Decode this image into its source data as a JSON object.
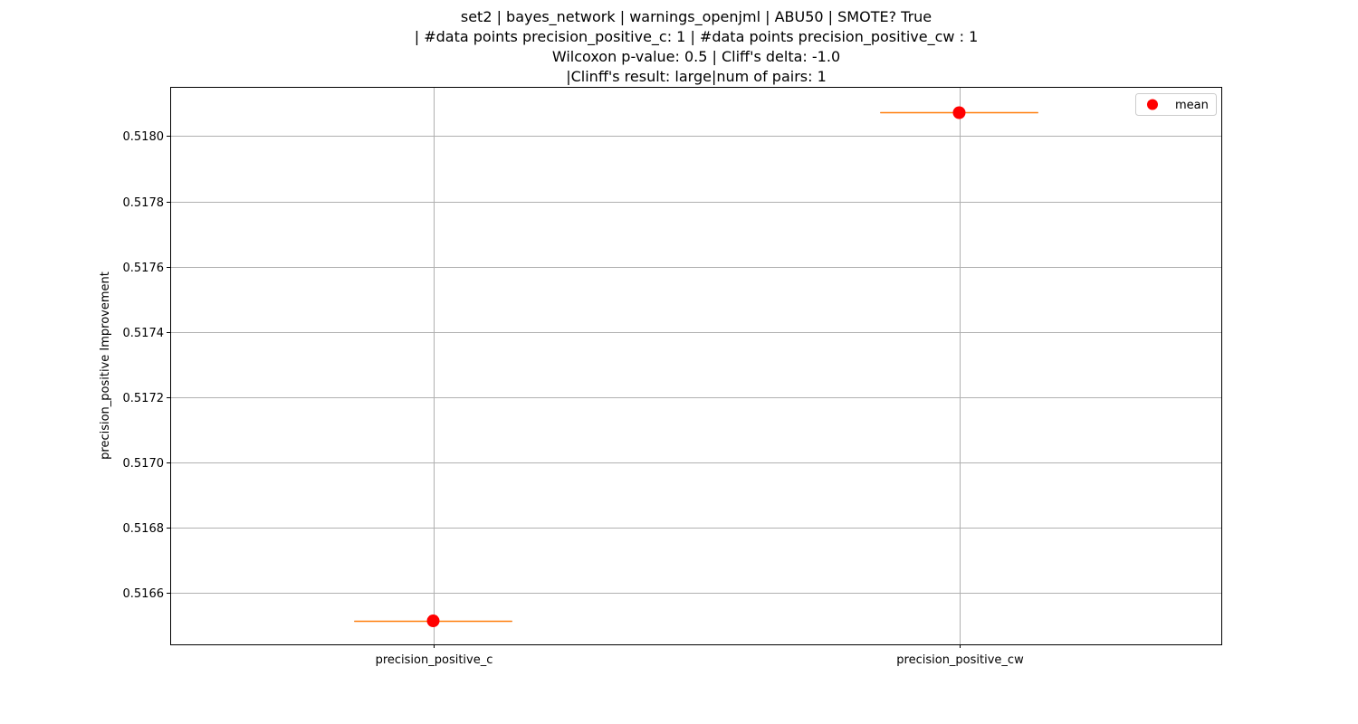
{
  "title_lines": [
    "set2 | bayes_network | warnings_openjml | ABU50 | SMOTE? True",
    "| #data points precision_positive_c: 1 | #data points precision_positive_cw : 1",
    "Wilcoxon p-value: 0.5 | Cliff's delta: -1.0",
    "|Clinff's result: large|num of pairs: 1"
  ],
  "chart_data": {
    "type": "box",
    "categories": [
      "precision_positive_c",
      "precision_positive_cw"
    ],
    "values": [
      0.516515,
      0.518072
    ],
    "means": [
      0.516515,
      0.518072
    ],
    "ylabel": "precision_positive Improvement",
    "xlabel": "",
    "ylim": [
      0.516443,
      0.518151
    ],
    "yticks": [
      "0.5166",
      "0.5168",
      "0.5170",
      "0.5172",
      "0.5174",
      "0.5176",
      "0.5178",
      "0.5180"
    ],
    "grid": true,
    "legend": {
      "position": "top-right",
      "entries": [
        "mean"
      ]
    },
    "colors": {
      "mean": "#ff0000",
      "median": "#ff7f0e",
      "box": "#000000",
      "grid": "#b0b0b0"
    }
  }
}
